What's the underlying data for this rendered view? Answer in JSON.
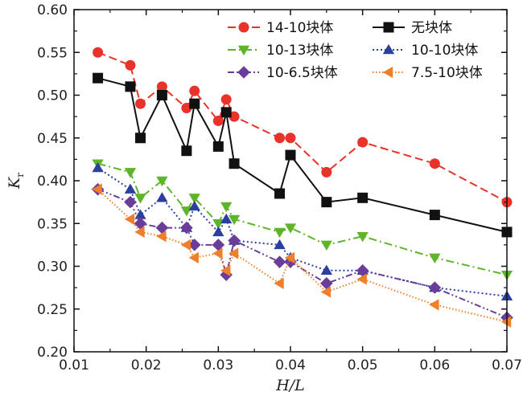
{
  "chart_data": {
    "type": "line",
    "xlabel": "H/L",
    "ylabel": "K",
    "ylabel_sub": "r",
    "xlim": [
      0.01,
      0.07
    ],
    "ylim": [
      0.2,
      0.6
    ],
    "xticks": [
      "0.01",
      "0.02",
      "0.03",
      "0.04",
      "0.05",
      "0.06",
      "0.07"
    ],
    "yticks": [
      "0.20",
      "0.25",
      "0.30",
      "0.35",
      "0.40",
      "0.45",
      "0.50",
      "0.55",
      "0.60"
    ],
    "grid": false,
    "legend_position": "top-right",
    "series": [
      {
        "name": "14-10块体",
        "color": "#e8322a",
        "marker": "circle",
        "dash": "10,5",
        "x": [
          0.0133,
          0.0178,
          0.0192,
          0.0222,
          0.0256,
          0.0267,
          0.03,
          0.0311,
          0.0322,
          0.0385,
          0.04,
          0.045,
          0.05,
          0.06,
          0.07
        ],
        "y": [
          0.55,
          0.535,
          0.49,
          0.51,
          0.485,
          0.505,
          0.47,
          0.495,
          0.475,
          0.45,
          0.45,
          0.41,
          0.445,
          0.42,
          0.375
        ]
      },
      {
        "name": "无块体",
        "color": "#111111",
        "marker": "square",
        "dash": "",
        "x": [
          0.0133,
          0.0178,
          0.0192,
          0.0222,
          0.0256,
          0.0267,
          0.03,
          0.0311,
          0.0322,
          0.0385,
          0.04,
          0.045,
          0.05,
          0.06,
          0.07
        ],
        "y": [
          0.52,
          0.51,
          0.45,
          0.5,
          0.435,
          0.49,
          0.44,
          0.48,
          0.42,
          0.385,
          0.43,
          0.375,
          0.38,
          0.36,
          0.34
        ]
      },
      {
        "name": "10-13块体",
        "color": "#5fb52a",
        "marker": "triangle-down",
        "dash": "10,4,2,4",
        "x": [
          0.0133,
          0.0178,
          0.0192,
          0.0222,
          0.0256,
          0.0267,
          0.03,
          0.0311,
          0.0322,
          0.0385,
          0.04,
          0.045,
          0.05,
          0.06,
          0.07
        ],
        "y": [
          0.42,
          0.41,
          0.38,
          0.4,
          0.365,
          0.38,
          0.35,
          0.37,
          0.355,
          0.34,
          0.345,
          0.325,
          0.335,
          0.31,
          0.29
        ]
      },
      {
        "name": "10-10块体",
        "color": "#2b3f9e",
        "marker": "triangle-up",
        "dash": "2,3",
        "x": [
          0.0133,
          0.0178,
          0.0192,
          0.0222,
          0.0256,
          0.0267,
          0.03,
          0.0311,
          0.0322,
          0.0385,
          0.04,
          0.045,
          0.05,
          0.06,
          0.07
        ],
        "y": [
          0.415,
          0.39,
          0.36,
          0.38,
          0.345,
          0.37,
          0.34,
          0.355,
          0.33,
          0.325,
          0.31,
          0.295,
          0.295,
          0.275,
          0.265
        ]
      },
      {
        "name": "10-6.5块体",
        "color": "#6a3d9a",
        "marker": "diamond",
        "dash": "8,3,2,3,2,3",
        "x": [
          0.0133,
          0.0178,
          0.0192,
          0.0222,
          0.0256,
          0.0267,
          0.03,
          0.0311,
          0.0322,
          0.0385,
          0.04,
          0.045,
          0.05,
          0.06,
          0.07
        ],
        "y": [
          0.39,
          0.375,
          0.35,
          0.345,
          0.345,
          0.325,
          0.325,
          0.29,
          0.33,
          0.305,
          0.305,
          0.28,
          0.295,
          0.275,
          0.24
        ]
      },
      {
        "name": "7.5-10块体",
        "color": "#f07f2a",
        "marker": "triangle-left",
        "dash": "1.5,2.5",
        "x": [
          0.0133,
          0.0178,
          0.0192,
          0.0222,
          0.0256,
          0.0267,
          0.03,
          0.0311,
          0.0322,
          0.0385,
          0.04,
          0.045,
          0.05,
          0.06,
          0.07
        ],
        "y": [
          0.39,
          0.355,
          0.34,
          0.335,
          0.325,
          0.31,
          0.315,
          0.295,
          0.315,
          0.28,
          0.31,
          0.27,
          0.285,
          0.255,
          0.235
        ]
      }
    ]
  }
}
